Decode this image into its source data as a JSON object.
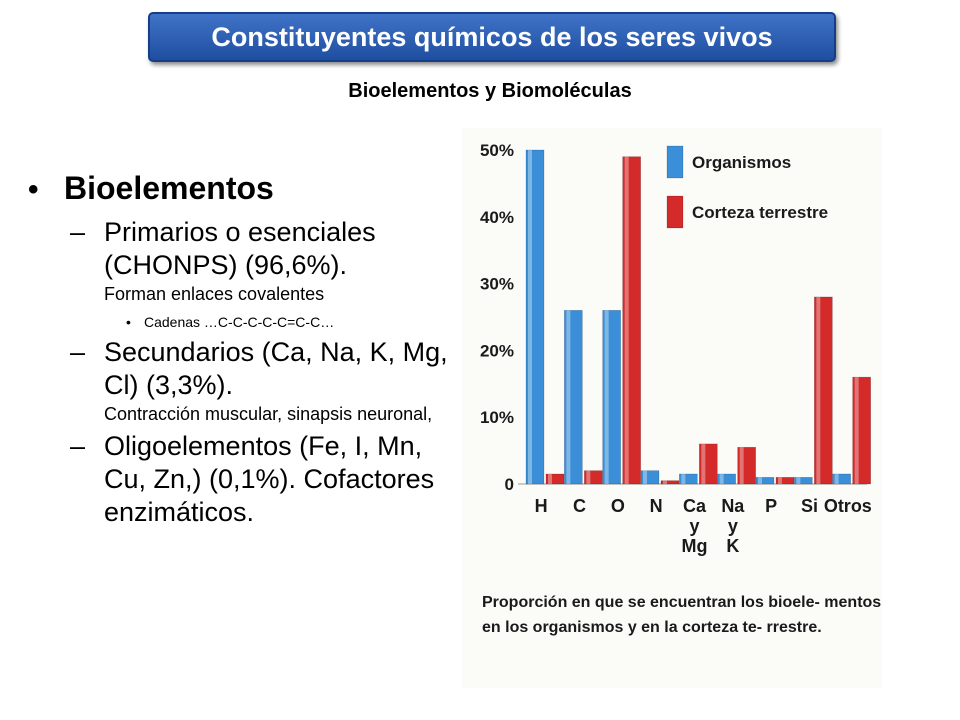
{
  "header": {
    "title": "Constituyentes químicos de los seres vivos",
    "subtitle": "Bioelementos y Biomoléculas"
  },
  "content": {
    "heading": "Bioelementos",
    "items": [
      {
        "main": "Primarios o esenciales (CHONPS) (96,6%).",
        "detail": "Forman enlaces covalentes",
        "subbullets": [
          "Cadenas …C-C-C-C-C=C-C…"
        ]
      },
      {
        "main": "Secundarios (Ca, Na, K, Mg, Cl) (3,3%).",
        "detail": "Contracción muscular, sinapsis neuronal,",
        "subbullets": []
      },
      {
        "main": "Oligoelementos (Fe, I, Mn, Cu, Zn,) (0,1%). Cofactores enzimáticos.",
        "detail": "",
        "subbullets": []
      }
    ]
  },
  "chart_data": {
    "type": "bar",
    "categories": [
      "H",
      "C",
      "O",
      "N",
      "Ca\ny\nMg",
      "Na\ny\nK",
      "P",
      "Si",
      "Otros"
    ],
    "series": [
      {
        "name": "Organismos",
        "color": "#3a8fd8",
        "values": [
          50,
          26,
          26,
          2,
          1.5,
          1.5,
          1,
          1,
          1.5
        ]
      },
      {
        "name": "Corteza terrestre",
        "color": "#d42a2a",
        "values": [
          1.5,
          2,
          49,
          0.5,
          6,
          5.5,
          1,
          28,
          16
        ]
      }
    ],
    "yticks": [
      "0",
      "10%",
      "20%",
      "30%",
      "40%",
      "50%"
    ],
    "ylim": [
      0,
      50
    ],
    "legend_position": "top-right",
    "caption": "Proporción en que se encuentran los bioele- mentos en los organismos y en la corteza te- rrestre."
  }
}
